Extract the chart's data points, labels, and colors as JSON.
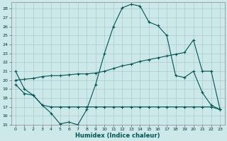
{
  "xlabel": "Humidex (Indice chaleur)",
  "background_color": "#cce8e8",
  "grid_color": "#aacccc",
  "line_color": "#005555",
  "xlim": [
    -0.5,
    23.5
  ],
  "ylim": [
    15,
    28.7
  ],
  "yticks": [
    15,
    16,
    17,
    18,
    19,
    20,
    21,
    22,
    23,
    24,
    25,
    26,
    27,
    28
  ],
  "xticks": [
    0,
    1,
    2,
    3,
    4,
    5,
    6,
    7,
    8,
    9,
    10,
    11,
    12,
    13,
    14,
    15,
    16,
    17,
    18,
    19,
    20,
    21,
    22,
    23
  ],
  "line1_x": [
    0,
    1,
    2,
    3,
    4,
    5,
    6,
    7,
    8,
    9,
    10,
    11,
    12,
    13,
    14,
    15,
    16,
    17,
    18,
    19,
    20,
    21,
    22,
    23
  ],
  "line1_y": [
    21.0,
    19.0,
    18.3,
    17.2,
    16.3,
    15.1,
    15.3,
    15.0,
    16.7,
    19.5,
    23.0,
    26.0,
    28.1,
    28.5,
    28.3,
    26.5,
    26.1,
    25.0,
    20.5,
    20.3,
    21.0,
    18.6,
    17.2,
    16.7
  ],
  "line2_x": [
    0,
    1,
    2,
    3,
    4,
    5,
    6,
    7,
    8,
    9,
    10,
    11,
    12,
    13,
    14,
    15,
    16,
    17,
    18,
    19,
    20,
    21,
    22,
    23
  ],
  "line2_y": [
    19.5,
    18.5,
    18.3,
    17.2,
    17.0,
    17.0,
    17.0,
    17.0,
    17.0,
    17.0,
    17.0,
    17.0,
    17.0,
    17.0,
    17.0,
    17.0,
    17.0,
    17.0,
    17.0,
    17.0,
    17.0,
    17.0,
    17.0,
    16.7
  ],
  "line3_x": [
    0,
    1,
    2,
    3,
    4,
    5,
    6,
    7,
    8,
    9,
    10,
    11,
    12,
    13,
    14,
    15,
    16,
    17,
    18,
    19,
    20,
    21,
    22,
    23
  ],
  "line3_y": [
    20.0,
    20.1,
    20.2,
    20.4,
    20.5,
    20.5,
    20.6,
    20.7,
    20.7,
    20.8,
    21.0,
    21.3,
    21.6,
    21.8,
    22.1,
    22.3,
    22.5,
    22.7,
    22.9,
    23.1,
    24.5,
    21.0,
    21.0,
    16.7
  ]
}
